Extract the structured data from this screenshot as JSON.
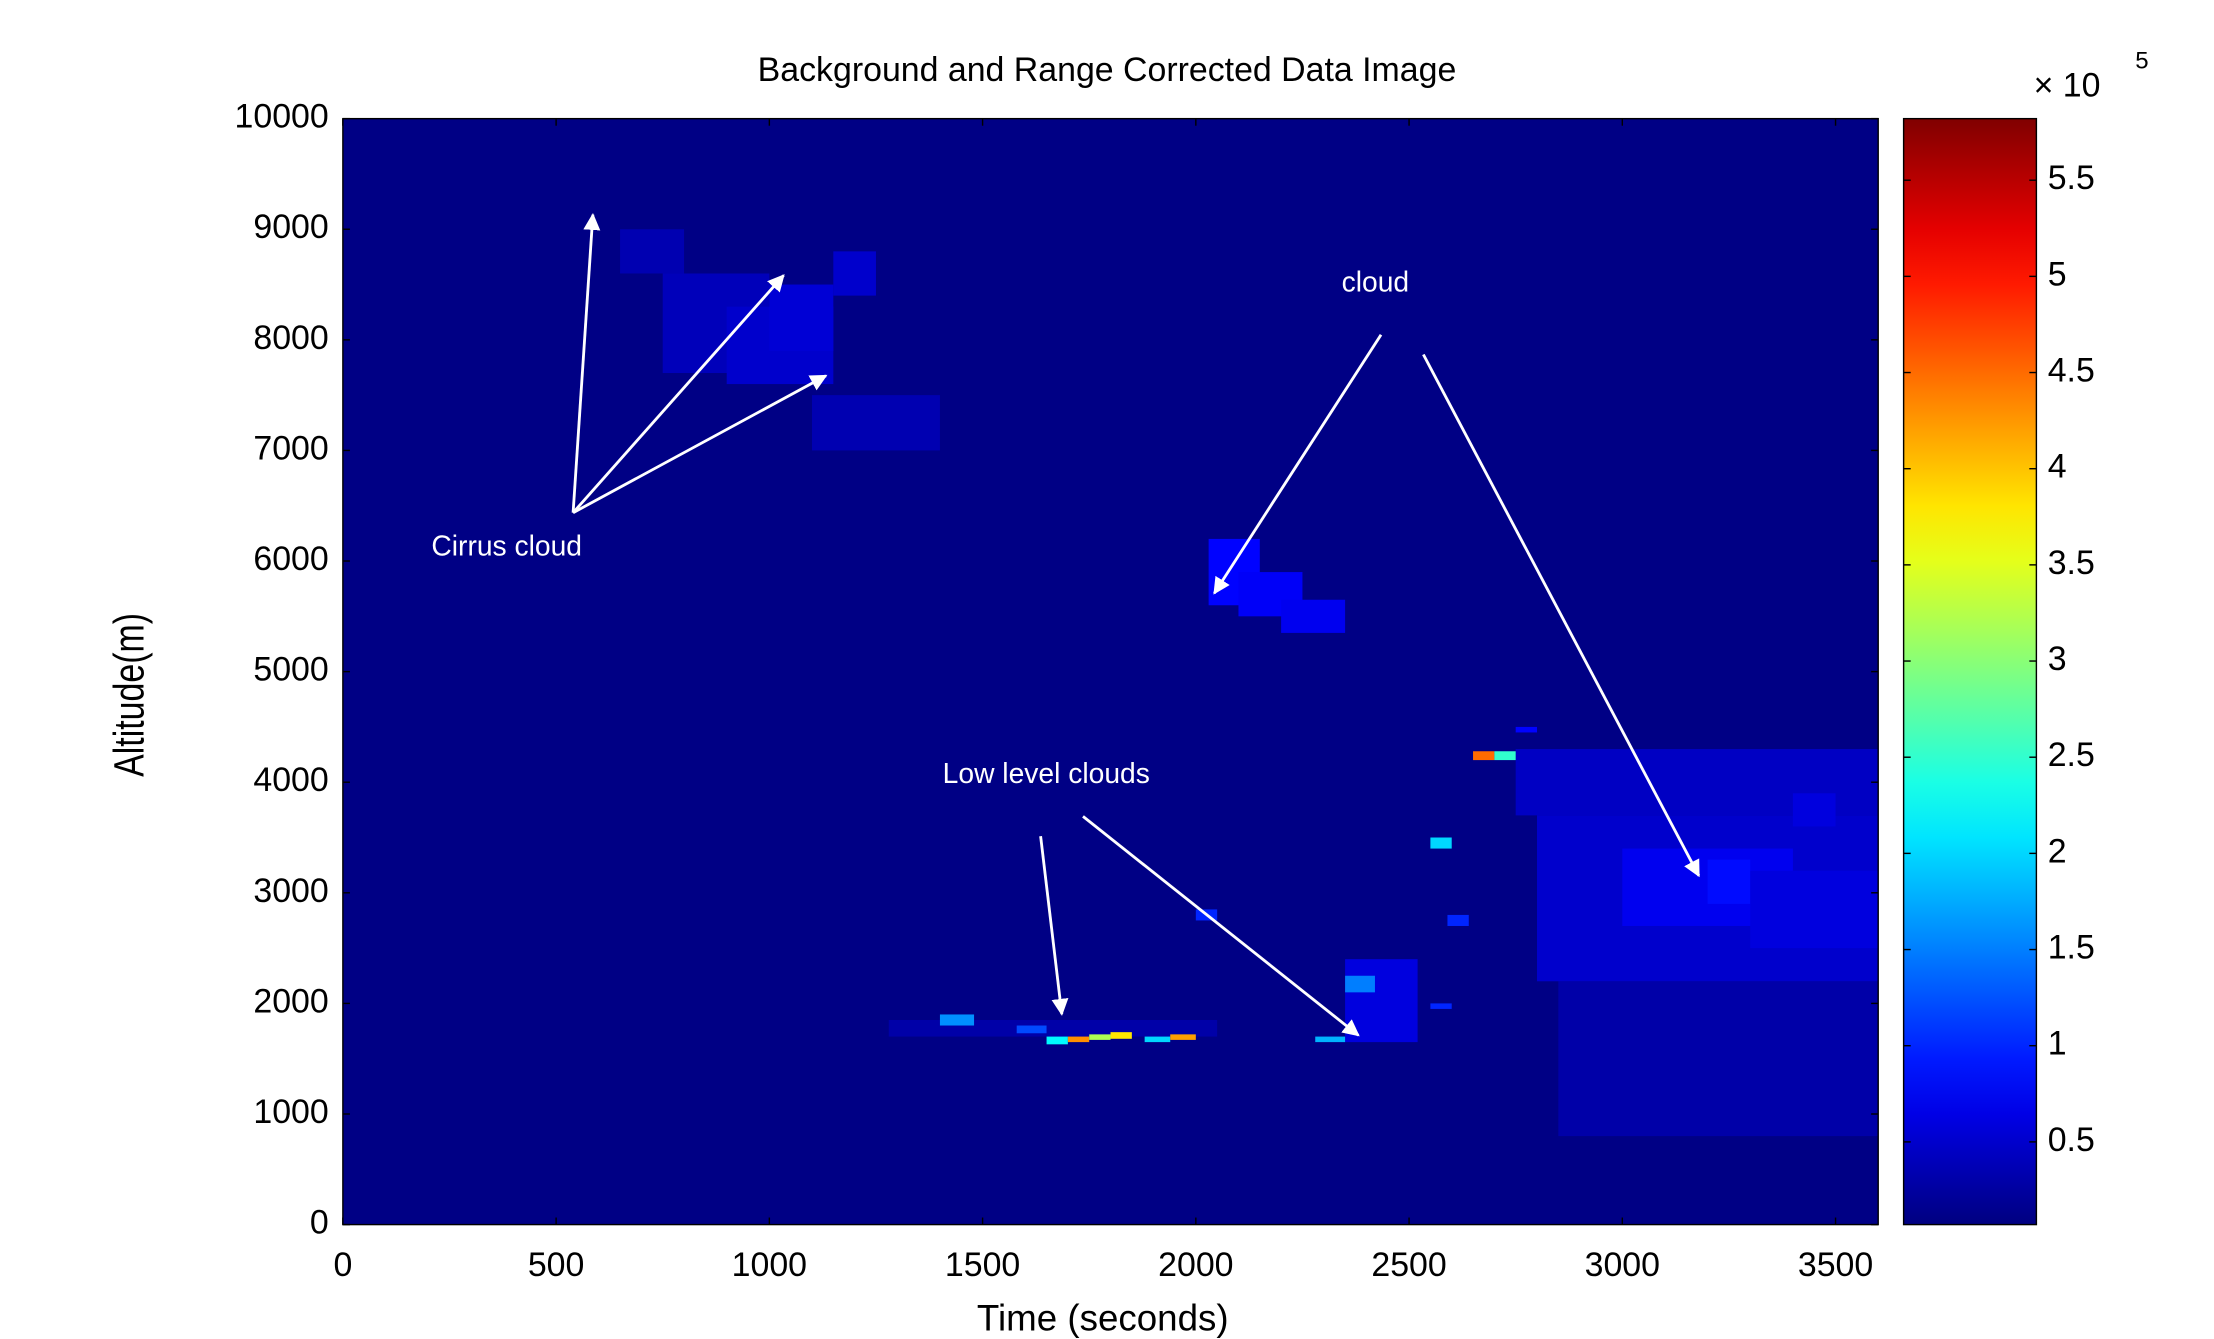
{
  "chart_data": {
    "type": "heatmap",
    "title": "Background and Range Corrected Data Image",
    "x_label": "Time (seconds)",
    "y_label": "Altitude(m)",
    "xlim": [
      0,
      3600
    ],
    "ylim": [
      0,
      10000
    ],
    "xticks": [
      0,
      500,
      1000,
      1500,
      2000,
      2500,
      3000,
      3500
    ],
    "yticks": [
      0,
      1000,
      2000,
      3000,
      4000,
      5000,
      6000,
      7000,
      8000,
      9000,
      10000
    ],
    "colormap": "jet",
    "clim": [
      0.07,
      5.82
    ],
    "colorbar_ticks": [
      0.5,
      1,
      1.5,
      2,
      2.5,
      3,
      3.5,
      4,
      4.5,
      5,
      5.5
    ],
    "colorbar_multiplier": "× 10",
    "colorbar_exponent": "5",
    "annotations": [
      "Cirrus cloud",
      "cloud",
      "Low level clouds"
    ],
    "cells": [
      {
        "x": [
          0,
          3600
        ],
        "y": [
          0,
          10000
        ],
        "value": 0.1
      },
      {
        "x": [
          650,
          800
        ],
        "y": [
          8600,
          9000
        ],
        "value": 0.35
      },
      {
        "x": [
          750,
          1000
        ],
        "y": [
          7700,
          8600
        ],
        "value": 0.4
      },
      {
        "x": [
          900,
          1150
        ],
        "y": [
          7600,
          8300
        ],
        "value": 0.5
      },
      {
        "x": [
          1000,
          1150
        ],
        "y": [
          7900,
          8500
        ],
        "value": 0.55
      },
      {
        "x": [
          1150,
          1250
        ],
        "y": [
          8400,
          8800
        ],
        "value": 0.5
      },
      {
        "x": [
          1100,
          1400
        ],
        "y": [
          7000,
          7500
        ],
        "value": 0.35
      },
      {
        "x": [
          2030,
          2150
        ],
        "y": [
          5600,
          6200
        ],
        "value": 0.8
      },
      {
        "x": [
          2100,
          2250
        ],
        "y": [
          5500,
          5900
        ],
        "value": 0.75
      },
      {
        "x": [
          2200,
          2350
        ],
        "y": [
          5350,
          5650
        ],
        "value": 0.7
      },
      {
        "x": [
          2850,
          3600
        ],
        "y": [
          800,
          2200
        ],
        "value": 0.3
      },
      {
        "x": [
          2750,
          3600
        ],
        "y": [
          3700,
          4300
        ],
        "value": 0.45
      },
      {
        "x": [
          2800,
          3600
        ],
        "y": [
          2200,
          3700
        ],
        "value": 0.5
      },
      {
        "x": [
          3000,
          3400
        ],
        "y": [
          2700,
          3400
        ],
        "value": 0.7
      },
      {
        "x": [
          3200,
          3300
        ],
        "y": [
          2900,
          3300
        ],
        "value": 0.85
      },
      {
        "x": [
          3300,
          3600
        ],
        "y": [
          2500,
          3200
        ],
        "value": 0.6
      },
      {
        "x": [
          3400,
          3500
        ],
        "y": [
          3600,
          3900
        ],
        "value": 0.6
      },
      {
        "x": [
          1280,
          2050
        ],
        "y": [
          1700,
          1850
        ],
        "value": 0.3
      },
      {
        "x": [
          2350,
          2520
        ],
        "y": [
          1650,
          2400
        ],
        "value": 0.6
      },
      {
        "x": [
          1400,
          1480
        ],
        "y": [
          1800,
          1900
        ],
        "value": 1.6
      },
      {
        "x": [
          1580,
          1650
        ],
        "y": [
          1730,
          1800
        ],
        "value": 1.2
      },
      {
        "x": [
          1650,
          1700
        ],
        "y": [
          1630,
          1700
        ],
        "value": 2.2
      },
      {
        "x": [
          1700,
          1750
        ],
        "y": [
          1650,
          1700
        ],
        "value": 4.3
      },
      {
        "x": [
          1750,
          1800
        ],
        "y": [
          1670,
          1720
        ],
        "value": 3.2
      },
      {
        "x": [
          1800,
          1850
        ],
        "y": [
          1680,
          1740
        ],
        "value": 3.8
      },
      {
        "x": [
          1880,
          1940
        ],
        "y": [
          1650,
          1700
        ],
        "value": 2.0
      },
      {
        "x": [
          1940,
          2000
        ],
        "y": [
          1670,
          1720
        ],
        "value": 4.2
      },
      {
        "x": [
          2280,
          2350
        ],
        "y": [
          1650,
          1700
        ],
        "value": 1.8
      },
      {
        "x": [
          2350,
          2420
        ],
        "y": [
          2100,
          2250
        ],
        "value": 1.5
      },
      {
        "x": [
          2550,
          2600
        ],
        "y": [
          3400,
          3500
        ],
        "value": 2.0
      },
      {
        "x": [
          2590,
          2640
        ],
        "y": [
          2700,
          2800
        ],
        "value": 1.0
      },
      {
        "x": [
          2650,
          2700
        ],
        "y": [
          4200,
          4280
        ],
        "value": 4.5
      },
      {
        "x": [
          2700,
          2750
        ],
        "y": [
          4200,
          4280
        ],
        "value": 2.5
      },
      {
        "x": [
          2750,
          2800
        ],
        "y": [
          4450,
          4500
        ],
        "value": 0.8
      },
      {
        "x": [
          2000,
          2050
        ],
        "y": [
          2750,
          2850
        ],
        "value": 1.0
      },
      {
        "x": [
          2550,
          2600
        ],
        "y": [
          1950,
          2000
        ],
        "value": 1.0
      }
    ]
  }
}
